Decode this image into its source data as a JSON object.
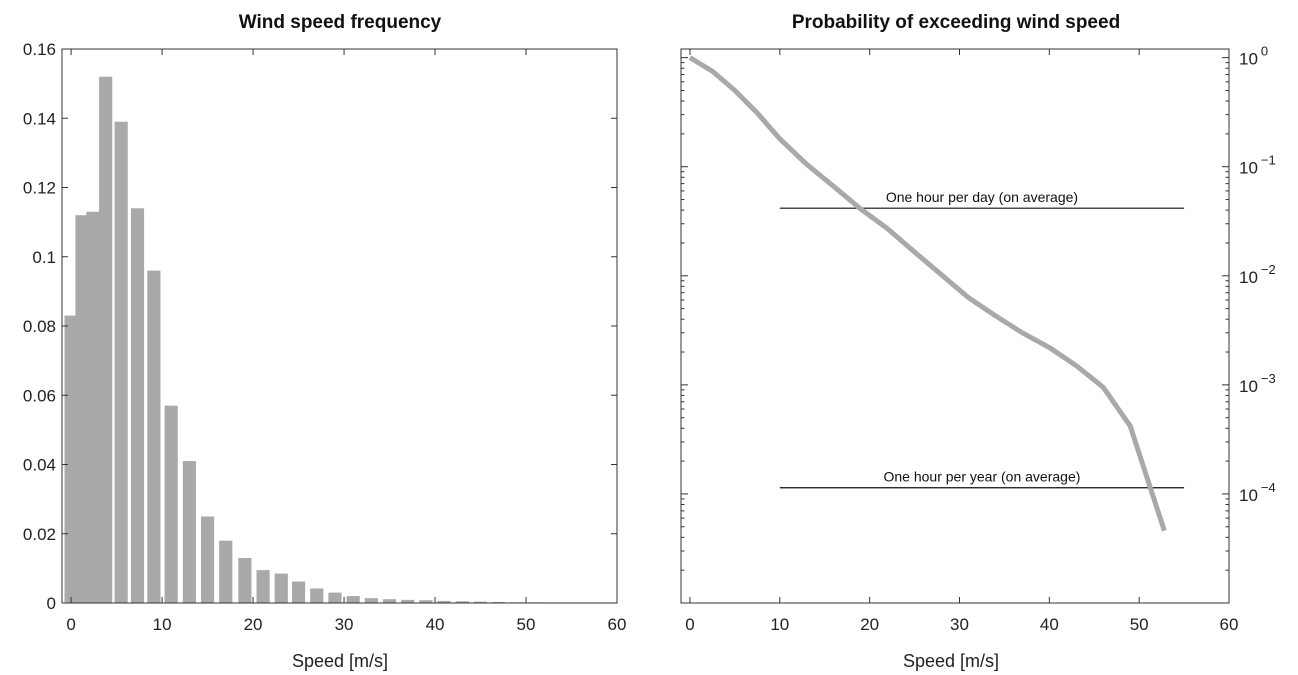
{
  "chart_data": [
    {
      "type": "bar",
      "title": "Wind speed frequency",
      "xlabel": "Speed [m/s]",
      "ylabel": "",
      "xlim": [
        -1,
        60
      ],
      "ylim": [
        0,
        0.16
      ],
      "xticks": [
        0,
        10,
        20,
        30,
        40,
        50,
        60
      ],
      "yticks": [
        0,
        0.02,
        0.04,
        0.06,
        0.08,
        0.1,
        0.12,
        0.14,
        0.16
      ],
      "ytick_labels": [
        "0",
        "0.02",
        "0.04",
        "0.06",
        "0.08",
        "0.1",
        "0.12",
        "0.14",
        "0.16"
      ],
      "bar_width": 1.45,
      "x": [
        0,
        1.2,
        2.4,
        3.8,
        5.5,
        7.3,
        9.1,
        11.0,
        13.0,
        15.0,
        17.0,
        19.1,
        21.1,
        23.1,
        25.0,
        27.0,
        29.0,
        31.0,
        33.0,
        35.0,
        37.0,
        39.0,
        41.0,
        43.0,
        45.0,
        47.0,
        49.0,
        51.0,
        53.0,
        55.0
      ],
      "values": [
        0.083,
        0.112,
        0.113,
        0.152,
        0.139,
        0.114,
        0.096,
        0.057,
        0.041,
        0.025,
        0.018,
        0.013,
        0.0095,
        0.0085,
        0.0062,
        0.0042,
        0.003,
        0.002,
        0.0014,
        0.0011,
        0.0009,
        0.0008,
        0.0006,
        0.0005,
        0.0004,
        0.0003,
        0.0002,
        0.0002,
        0.0001,
        0.0001
      ],
      "color": "#a9a9ab",
      "grid": false
    },
    {
      "type": "line",
      "title": "Probability of exceeding wind speed",
      "xlabel": "Speed [m/s]",
      "ylabel": "",
      "yscale": "log",
      "y_axis_side": "right",
      "xlim": [
        -1,
        60
      ],
      "ylim": [
        1e-05,
        1.2
      ],
      "xticks": [
        0,
        10,
        20,
        30,
        40,
        50,
        60
      ],
      "yticks": [
        1,
        0.1,
        0.01,
        0.001,
        0.0001
      ],
      "ytick_labels": [
        {
          "base": "10",
          "exp": "0"
        },
        {
          "base": "10",
          "exp": "−1"
        },
        {
          "base": "10",
          "exp": "−2"
        },
        {
          "base": "10",
          "exp": "−3"
        },
        {
          "base": "10",
          "exp": "−4"
        }
      ],
      "series": [
        {
          "x": [
            0,
            2.5,
            5,
            7.5,
            10,
            13,
            16,
            19,
            22,
            25,
            28,
            31,
            34,
            37,
            40,
            43,
            46,
            49,
            52.8
          ],
          "y": [
            1.0,
            0.75,
            0.5,
            0.31,
            0.18,
            0.105,
            0.066,
            0.041,
            0.027,
            0.0165,
            0.0102,
            0.0063,
            0.0043,
            0.003,
            0.0022,
            0.0015,
            0.00095,
            0.00042,
            4.6e-05
          ],
          "color": "#a9a9ab"
        }
      ],
      "reference_lines": [
        {
          "label": "One hour per day (on average)",
          "y": 0.041667,
          "x_start": 10,
          "x_end": 55
        },
        {
          "label": "One hour per year (on average)",
          "y": 0.000114,
          "x_start": 10,
          "x_end": 55
        }
      ],
      "grid": false
    }
  ]
}
